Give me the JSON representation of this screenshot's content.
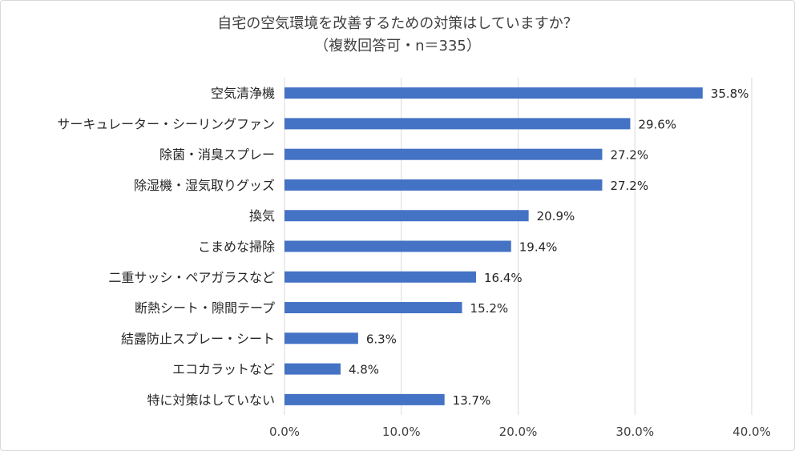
{
  "chart_data": {
    "type": "bar",
    "orientation": "horizontal",
    "title": "自宅の空気環境を改善するための対策はしていますか？",
    "subtitle": "（複数回答可・n＝335）",
    "categories": [
      "空気清浄機",
      "サーキュレーター・シーリングファン",
      "除菌・消臭スプレー",
      "除湿機・湿気取りグッズ",
      "換気",
      "こまめな掃除",
      "二重サッシ・ペアガラスなど",
      "断熱シート・隙間テープ",
      "結露防止スプレー・シート",
      "エコカラットなど",
      "特に対策はしていない"
    ],
    "values": [
      35.8,
      29.6,
      27.2,
      27.2,
      20.9,
      19.4,
      16.4,
      15.2,
      6.3,
      4.8,
      13.7
    ],
    "value_labels": [
      "35.8%",
      "29.6%",
      "27.2%",
      "27.2%",
      "20.9%",
      "19.4%",
      "16.4%",
      "15.2%",
      "6.3%",
      "4.8%",
      "13.7%"
    ],
    "xlim": [
      0,
      40
    ],
    "x_ticks": [
      0,
      10,
      20,
      30,
      40
    ],
    "x_tick_labels": [
      "0.0%",
      "10.0%",
      "20.0%",
      "30.0%",
      "40.0%"
    ],
    "xlabel": "",
    "ylabel": "",
    "grid": true,
    "bar_color": "#4472c4",
    "grid_color": "#d9d9d9"
  }
}
